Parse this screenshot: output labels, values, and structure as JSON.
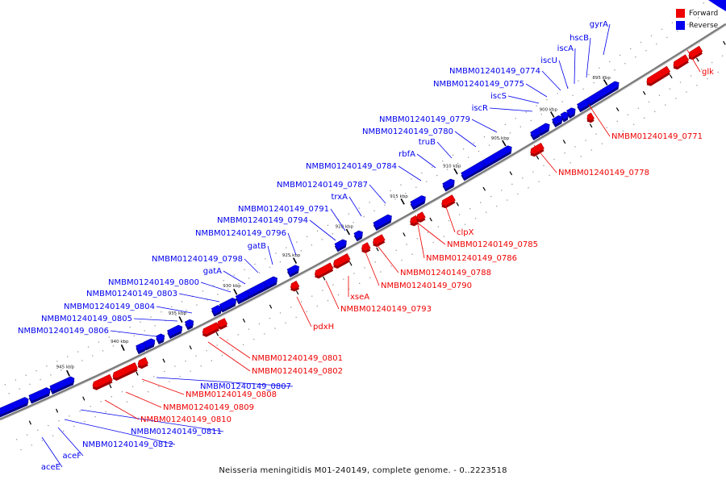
{
  "caption": "Neisseria meningitidis M01-240149, complete genome. - 0..2223518",
  "legend": [
    {
      "label": "Forward",
      "color": "#ee0000"
    },
    {
      "label": "Reverse",
      "color": "#0000ee"
    }
  ],
  "colors": {
    "forward": "#ee0000",
    "reverse": "#0000ee",
    "backbone": "#888888"
  },
  "ticks": [
    "895 kbp",
    "900 kbp",
    "905 kbp",
    "910 kbp",
    "915 kbp",
    "920 kbp",
    "925 kbp",
    "930 kbp",
    "935 kbp",
    "940 kbp",
    "945 kbp"
  ],
  "genes_reverse": [
    "gyrA",
    "hscB",
    "iscA",
    "iscU",
    "NMBM01240149_0774",
    "NMBM01240149_0775",
    "iscS",
    "iscR",
    "NMBM01240149_0779",
    "NMBM01240149_0780",
    "truB",
    "rbfA",
    "NMBM01240149_0784",
    "NMBM01240149_0787",
    "trxA",
    "NMBM01240149_0791",
    "NMBM01240149_0794",
    "NMBM01240149_0796",
    "gatB",
    "NMBM01240149_0798",
    "gatA",
    "NMBM01240149_0800",
    "NMBM01240149_0803",
    "NMBM01240149_0804",
    "NMBM01240149_0805",
    "NMBM01240149_0806",
    "NMBM01240149_0807",
    "NMBM01240149_0811",
    "NMBM01240149_0812",
    "aceF",
    "aceE"
  ],
  "genes_forward": [
    "glk",
    "NMBM01240149_0771",
    "NMBM01240149_0778",
    "clpX",
    "NMBM01240149_0785",
    "NMBM01240149_0786",
    "NMBM01240149_0788",
    "NMBM01240149_0790",
    "xseA",
    "NMBM01240149_0793",
    "pdxH",
    "NMBM01240149_0801",
    "NMBM01240149_0802",
    "NMBM01240149_0808",
    "NMBM01240149_0809",
    "NMBM01240149_0810"
  ]
}
